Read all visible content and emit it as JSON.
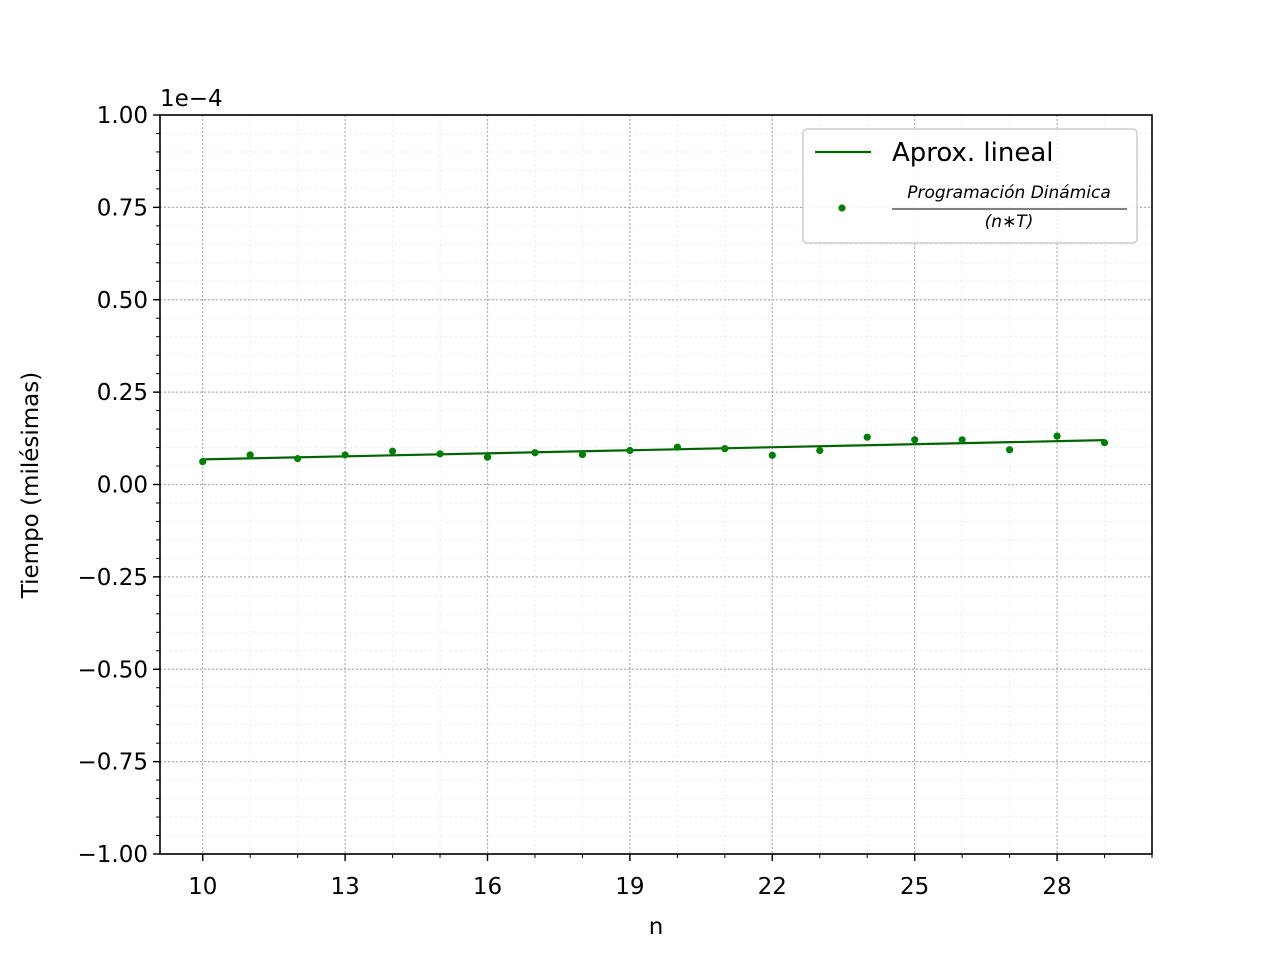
{
  "chart_data": {
    "type": "scatter",
    "xlabel": "n",
    "ylabel": "Tiempo (milésimas)",
    "offset_label": "1e−4",
    "xlim": [
      9.1,
      30.0
    ],
    "ylim": [
      -1.0,
      1.0
    ],
    "x_ticks": [
      10,
      13,
      16,
      19,
      22,
      25,
      28
    ],
    "x_tick_labels": [
      "10",
      "13",
      "16",
      "19",
      "22",
      "25",
      "28"
    ],
    "y_ticks": [
      1.0,
      0.75,
      0.5,
      0.25,
      0.0,
      -0.25,
      -0.5,
      -0.75,
      -1.0
    ],
    "y_tick_labels": [
      "1.00",
      "0.75",
      "0.50",
      "0.25",
      "0.00",
      "−0.25",
      "−0.50",
      "−0.75",
      "−1.00"
    ],
    "grid": true,
    "legend_position": "top-right",
    "color": "#008000",
    "line_color": "#006400",
    "series": [
      {
        "name": "Aprox. lineal",
        "kind": "line",
        "x": [
          10,
          29
        ],
        "y": [
          0.068,
          0.12
        ]
      },
      {
        "name": "Programación Dinámica / (n∗T)",
        "kind": "scatter",
        "x": [
          10,
          11,
          12,
          13,
          14,
          15,
          16,
          17,
          18,
          19,
          20,
          21,
          22,
          23,
          24,
          25,
          26,
          27,
          28,
          29
        ],
        "y": [
          0.062,
          0.08,
          0.07,
          0.08,
          0.09,
          0.083,
          0.074,
          0.086,
          0.081,
          0.092,
          0.101,
          0.097,
          0.079,
          0.092,
          0.128,
          0.121,
          0.121,
          0.094,
          0.131,
          0.113
        ]
      }
    ],
    "legend": {
      "line_label": "Aprox. lineal",
      "scatter_numerator": "Programación Dinámica",
      "scatter_denominator": "(n∗T)"
    }
  }
}
